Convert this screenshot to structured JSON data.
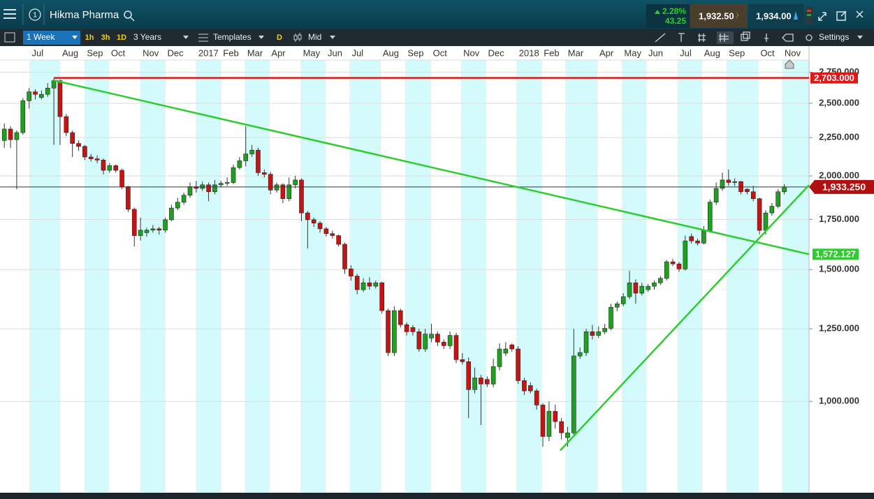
{
  "header": {
    "instrument": "Hikma Pharma",
    "tab_number": "1",
    "change_pct": "2.28%",
    "change": "43.25",
    "sell": "1,932.50",
    "buy": "1,934.00"
  },
  "toolbar": {
    "interval": "1 Week",
    "quick": [
      "1h",
      "3h",
      "1D"
    ],
    "range": "3 Years",
    "templates": "Templates",
    "d": "D",
    "price_type": "Mid",
    "settings": "Settings"
  },
  "chart_data": {
    "type": "candlestick",
    "open": [
      2230,
      2310,
      2236,
      2285,
      2520,
      2590,
      2545,
      2570,
      2620,
      2680,
      2400,
      2285,
      2210,
      2190,
      2120,
      2108,
      2100,
      2035,
      2064,
      2035,
      1935,
      1805,
      1665,
      1680,
      1693,
      1700,
      1693,
      1748,
      1812,
      1845,
      1885,
      1935,
      1925,
      1946,
      1905,
      1946,
      1955,
      1960,
      2052,
      2095,
      2140,
      2165,
      2020,
      2010,
      1915,
      1946,
      1865,
      1946,
      1975,
      1785,
      1748,
      1730,
      1700,
      1675,
      1665,
      1621,
      1503,
      1470,
      1410,
      1440,
      1425,
      1440,
      1322,
      1162,
      1322,
      1266,
      1255,
      1239,
      1175,
      1215,
      1230,
      1200,
      1187,
      1225,
      1137,
      1130,
      1037,
      1075,
      1070,
      1055,
      1113,
      1160,
      1190,
      1175,
      1066,
      1050,
      1033,
      989,
      898,
      970,
      940,
      895,
      908,
      1150,
      1162,
      1239,
      1225,
      1239,
      1252,
      1336,
      1350,
      1380,
      1440,
      1395,
      1410,
      1425,
      1440,
      1460,
      1536,
      1526,
      1503,
      1660,
      1638,
      1627,
      1690,
      1845,
      1925,
      1975,
      1960,
      1965,
      1920,
      1905,
      1865,
      1692,
      1785,
      1822,
      1905
    ],
    "high": [
      2350,
      2330,
      2300,
      2540,
      2620,
      2610,
      2600,
      2660,
      2703,
      2690,
      2420,
      2300,
      2230,
      2200,
      2140,
      2130,
      2110,
      2080,
      2070,
      2045,
      1940,
      1815,
      1760,
      1705,
      1720,
      1710,
      1760,
      1830,
      1870,
      1900,
      1960,
      1970,
      1965,
      1960,
      1975,
      1970,
      1990,
      2070,
      2120,
      2330,
      2200,
      2180,
      2040,
      2025,
      1960,
      1955,
      1990,
      2000,
      1985,
      1795,
      1760,
      1740,
      1710,
      1690,
      1670,
      1630,
      1520,
      1480,
      1460,
      1465,
      1450,
      1445,
      1330,
      1340,
      1330,
      1275,
      1265,
      1250,
      1250,
      1270,
      1240,
      1210,
      1240,
      1235,
      1160,
      1145,
      1110,
      1085,
      1080,
      1140,
      1195,
      1200,
      1195,
      1185,
      1075,
      1060,
      1040,
      995,
      1000,
      990,
      950,
      925,
      1250,
      1180,
      1250,
      1265,
      1260,
      1270,
      1350,
      1360,
      1395,
      1495,
      1455,
      1440,
      1435,
      1450,
      1470,
      1545,
      1550,
      1535,
      1665,
      1675,
      1650,
      1715,
      1860,
      1960,
      2020,
      2040,
      1985,
      1970,
      1925,
      1940,
      1870,
      1800,
      1840,
      1920,
      1950
    ],
    "low": [
      2180,
      2180,
      1920,
      2270,
      2460,
      2530,
      2530,
      2550,
      2200,
      2200,
      2260,
      2120,
      2160,
      2100,
      2090,
      2080,
      2010,
      2020,
      2020,
      1920,
      1790,
      1610,
      1640,
      1660,
      1680,
      1670,
      1680,
      1740,
      1800,
      1830,
      1870,
      1900,
      1910,
      1850,
      1890,
      1930,
      1940,
      1950,
      2040,
      2060,
      2120,
      2000,
      1990,
      1890,
      1900,
      1840,
      1850,
      1925,
      1740,
      1600,
      1710,
      1680,
      1660,
      1650,
      1610,
      1480,
      1450,
      1390,
      1400,
      1410,
      1415,
      1310,
      1150,
      1150,
      1255,
      1225,
      1225,
      1165,
      1165,
      1200,
      1185,
      1175,
      1175,
      1125,
      1120,
      950,
      1025,
      930,
      1045,
      1045,
      1100,
      1150,
      1165,
      1055,
      1020,
      1025,
      975,
      870,
      885,
      920,
      890,
      870,
      900,
      1140,
      1150,
      1210,
      1215,
      1230,
      1245,
      1320,
      1340,
      1370,
      1350,
      1385,
      1400,
      1410,
      1430,
      1450,
      1515,
      1490,
      1495,
      1625,
      1615,
      1620,
      1680,
      1830,
      1910,
      1940,
      1940,
      1890,
      1890,
      1850,
      1670,
      1670,
      1770,
      1810,
      1890
    ],
    "close": [
      2310,
      2236,
      2285,
      2520,
      2590,
      2570,
      2570,
      2620,
      2680,
      2400,
      2285,
      2210,
      2190,
      2120,
      2108,
      2100,
      2035,
      2064,
      2035,
      1935,
      1805,
      1665,
      1693,
      1693,
      1700,
      1693,
      1748,
      1812,
      1845,
      1885,
      1935,
      1925,
      1946,
      1905,
      1946,
      1955,
      1960,
      2052,
      2095,
      2140,
      2165,
      2020,
      2010,
      1915,
      1946,
      1865,
      1946,
      1975,
      1785,
      1748,
      1730,
      1700,
      1675,
      1665,
      1621,
      1503,
      1470,
      1410,
      1440,
      1425,
      1440,
      1322,
      1162,
      1322,
      1266,
      1239,
      1239,
      1175,
      1230,
      1230,
      1200,
      1187,
      1225,
      1137,
      1130,
      1037,
      1075,
      1055,
      1055,
      1113,
      1175,
      1175,
      1175,
      1066,
      1033,
      1033,
      989,
      898,
      970,
      940,
      908,
      908,
      1150,
      1162,
      1239,
      1225,
      1239,
      1252,
      1336,
      1350,
      1380,
      1440,
      1395,
      1425,
      1425,
      1440,
      1460,
      1536,
      1526,
      1503,
      1638,
      1638,
      1627,
      1690,
      1845,
      1925,
      1975,
      1960,
      1965,
      1905,
      1905,
      1865,
      1692,
      1785,
      1822,
      1905,
      1933
    ],
    "up_color": "#1fa01f",
    "down_color": "#cc1111",
    "xlim": [
      -0.7,
      130
    ],
    "xticks": [
      {
        "value": 4.1,
        "label": "Jul"
      },
      {
        "value": 9.0,
        "label": "Aug"
      },
      {
        "value": 13.0,
        "label": "Sep"
      },
      {
        "value": 16.9,
        "label": "Oct"
      },
      {
        "value": 22.0,
        "label": "Nov"
      },
      {
        "value": 26.0,
        "label": "Dec"
      },
      {
        "value": 31.0,
        "label": "2017"
      },
      {
        "value": 35.0,
        "label": "Feb"
      },
      {
        "value": 38.9,
        "label": "Mar"
      },
      {
        "value": 42.8,
        "label": "Apr"
      },
      {
        "value": 47.9,
        "label": "May"
      },
      {
        "value": 51.9,
        "label": "Jun"
      },
      {
        "value": 55.8,
        "label": "Jul"
      },
      {
        "value": 60.8,
        "label": "Aug"
      },
      {
        "value": 64.8,
        "label": "Sep"
      },
      {
        "value": 68.9,
        "label": "Oct"
      },
      {
        "value": 73.8,
        "label": "Nov"
      },
      {
        "value": 77.8,
        "label": "Dec"
      },
      {
        "value": 82.8,
        "label": "2018"
      },
      {
        "value": 86.8,
        "label": "Feb"
      },
      {
        "value": 90.7,
        "label": "Mar"
      },
      {
        "value": 95.8,
        "label": "Apr"
      },
      {
        "value": 99.8,
        "label": "May"
      },
      {
        "value": 103.7,
        "label": "Jun"
      },
      {
        "value": 108.8,
        "label": "Jul"
      },
      {
        "value": 112.7,
        "label": "Aug"
      },
      {
        "value": 116.7,
        "label": "Sep"
      },
      {
        "value": 121.8,
        "label": "Oct"
      },
      {
        "value": 125.7,
        "label": "Nov"
      }
    ],
    "ylim": [
      757,
      2856
    ],
    "log_y": true,
    "yticks": [
      {
        "value": 1000,
        "label": "1,000.000"
      },
      {
        "value": 1250,
        "label": "1,250.000"
      },
      {
        "value": 1500,
        "label": "1,500.000"
      },
      {
        "value": 1750,
        "label": "1,750.000"
      },
      {
        "value": 2000,
        "label": "2,000.000"
      },
      {
        "value": 2250,
        "label": "2,250.000"
      },
      {
        "value": 2500,
        "label": "2,500.000"
      },
      {
        "value": 2750,
        "label": "2,750.000"
      }
    ],
    "grid": true,
    "hline": {
      "value": 2703,
      "label": "2,703.000",
      "color": "#e01818"
    },
    "last_price": {
      "value": 1933.25,
      "label": "1,933.250",
      "color": "#b01010"
    },
    "trendlines": [
      {
        "x": [
          8,
          130
        ],
        "y": [
          2683,
          1572.127
        ],
        "end_label": "1,572.127",
        "color": "#2ecc2e"
      },
      {
        "x": [
          89.8,
          130
        ],
        "y": [
          860,
          1945
        ],
        "color": "#2ecc2e"
      }
    ]
  }
}
